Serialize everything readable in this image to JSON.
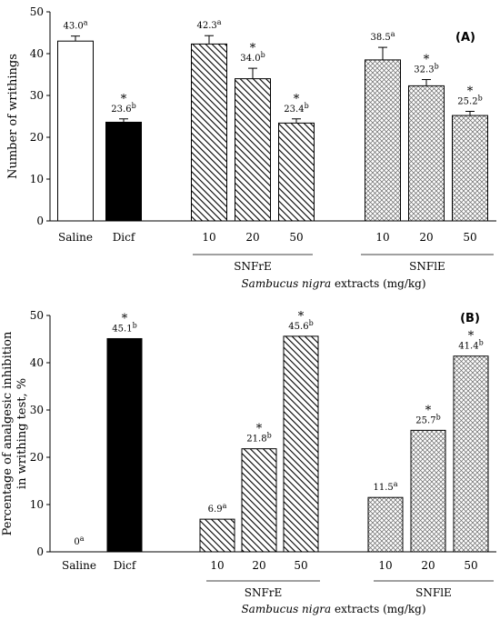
{
  "chart_data": [
    {
      "type": "bar",
      "panel": "(A)",
      "ylabel": "Number of writhings",
      "xlabel": "Sambucus nigra extracts (mg/kg)",
      "xlabel_italic": "Sambucus nigra",
      "xlabel_rest": " extracts (mg/kg)",
      "ylim": [
        0,
        50
      ],
      "yticks": [
        0,
        10,
        20,
        30,
        40,
        50
      ],
      "categories": [
        "Saline",
        "Dicf",
        "10",
        "20",
        "50",
        "10",
        "20",
        "50"
      ],
      "groups": [
        {
          "label": "SNFrE",
          "categories": [
            2,
            3,
            4
          ]
        },
        {
          "label": "SNFlE",
          "categories": [
            5,
            6,
            7
          ]
        }
      ],
      "values": [
        43.0,
        23.6,
        42.3,
        34.0,
        23.4,
        38.5,
        32.3,
        25.2
      ],
      "errors": [
        1.2,
        0.8,
        2.0,
        2.5,
        1.0,
        3.0,
        1.5,
        1.0
      ],
      "value_labels": [
        "43.0",
        "23.6",
        "42.3",
        "34.0",
        "23.4",
        "38.5",
        "32.3",
        "25.2"
      ],
      "letters": [
        "a",
        "b",
        "a",
        "b",
        "b",
        "a",
        "b",
        "b"
      ],
      "significant": [
        false,
        true,
        false,
        true,
        true,
        false,
        true,
        true
      ],
      "fills": [
        "white",
        "black",
        "hatch",
        "hatch",
        "hatch",
        "dots",
        "dots",
        "dots"
      ],
      "error_bars": true,
      "grid": false
    },
    {
      "type": "bar",
      "panel": "(B)",
      "ylabel": "Percentage of analgesic inhibition in writhing test, %",
      "ylabel_line1": "Percentage of analgesic  inhibition",
      "ylabel_line2": "in writhing test, %",
      "xlabel": "Sambucus nigra extracts (mg/kg)",
      "xlabel_italic": "Sambucus nigra",
      "xlabel_rest": " extracts (mg/kg)",
      "ylim": [
        0,
        50
      ],
      "yticks": [
        0,
        10,
        20,
        30,
        40,
        50
      ],
      "categories": [
        "Saline",
        "Dicf",
        "10",
        "20",
        "50",
        "10",
        "20",
        "50"
      ],
      "groups": [
        {
          "label": "SNFrE",
          "categories": [
            2,
            3,
            4
          ]
        },
        {
          "label": "SNFlE",
          "categories": [
            5,
            6,
            7
          ]
        }
      ],
      "values": [
        0,
        45.1,
        6.9,
        21.8,
        45.6,
        11.5,
        25.7,
        41.4
      ],
      "value_labels": [
        "0",
        "45.1",
        "6.9",
        "21.8",
        "45.6",
        "11.5",
        "25.7",
        "41.4"
      ],
      "letters": [
        "a",
        "b",
        "a",
        "b",
        "b",
        "a",
        "b",
        "b"
      ],
      "significant": [
        false,
        true,
        false,
        true,
        true,
        false,
        true,
        true
      ],
      "fills": [
        "white",
        "black",
        "hatch",
        "hatch",
        "hatch",
        "dots",
        "dots",
        "dots"
      ],
      "error_bars": false,
      "grid": false
    }
  ]
}
